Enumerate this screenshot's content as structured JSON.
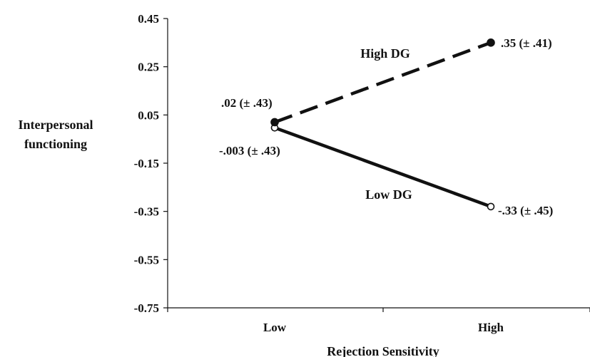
{
  "chart_data": {
    "type": "line",
    "title": "",
    "xlabel": "Rejection Sensitivity",
    "ylabel": [
      "Interpersonal",
      "functioning"
    ],
    "categories": [
      "Low",
      "High"
    ],
    "ylim": [
      -0.75,
      0.45
    ],
    "yticks": [
      "0.45",
      "0.25",
      "0.05",
      "-0.15",
      "-0.35",
      "-0.55",
      "-0.75"
    ],
    "grid": false,
    "legend": "none",
    "series": [
      {
        "name": "High DG",
        "style": "dashed",
        "marker": "filled-circle",
        "values": [
          0.02,
          0.35
        ],
        "labels": [
          ".02 (± .43)",
          ".35 (± .41)"
        ]
      },
      {
        "name": "Low DG",
        "style": "solid",
        "marker": "open-circle",
        "values": [
          -0.003,
          -0.33
        ],
        "labels": [
          "-.003 (± .43)",
          "-.33 (± .45)"
        ]
      }
    ],
    "colors": {
      "ink": "#111111",
      "background": "#ffffff"
    }
  }
}
